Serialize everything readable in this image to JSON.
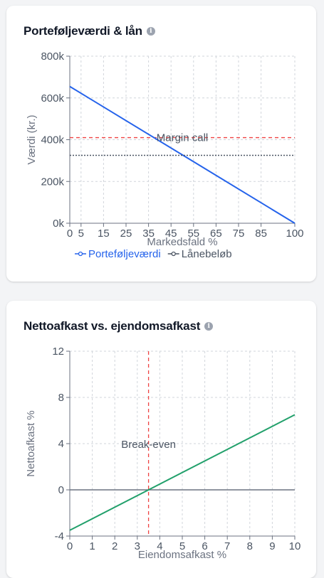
{
  "cards": [
    {
      "title": "Porteføljeværdi & lån",
      "info_icon": "info-icon"
    },
    {
      "title": "Nettoafkast vs. ejendomsafkast",
      "info_icon": "info-icon"
    }
  ],
  "chart_data": [
    {
      "type": "line",
      "xlabel": "Markedsfald %",
      "ylabel": "Værdi (kr.)",
      "xlim": [
        0,
        100
      ],
      "ylim": [
        0,
        800000
      ],
      "x_ticks": [
        "0",
        "5",
        "15",
        "25",
        "35",
        "45",
        "55",
        "65",
        "75",
        "85",
        "100"
      ],
      "y_ticks": [
        "0k",
        "200k",
        "400k",
        "600k",
        "800k"
      ],
      "grid": true,
      "legend": "bottom",
      "series": [
        {
          "name": "Porteføljeværdi",
          "color": "#2563eb",
          "style": "solid",
          "x": [
            0,
            100
          ],
          "y": [
            655000,
            0
          ]
        },
        {
          "name": "Lånebeløb",
          "color": "#4b5563",
          "style": "dotted",
          "x": [
            0,
            100
          ],
          "y": [
            325000,
            325000
          ]
        }
      ],
      "reference_lines": [
        {
          "label": "Margin call",
          "y": 410000,
          "color": "#ef4444",
          "style": "dashed"
        }
      ]
    },
    {
      "type": "line",
      "xlabel": "Eiendomsafkast %",
      "ylabel": "Nettoafkast %",
      "xlim": [
        0,
        10
      ],
      "ylim": [
        -4,
        12
      ],
      "x_ticks": [
        "0",
        "1",
        "2",
        "3",
        "4",
        "5",
        "6",
        "7",
        "8",
        "9",
        "10"
      ],
      "y_ticks": [
        "-4",
        "0",
        "4",
        "8",
        "12"
      ],
      "grid": true,
      "series": [
        {
          "color": "#22a06b",
          "x": [
            0,
            10
          ],
          "y": [
            -3.5,
            6.5
          ]
        }
      ],
      "reference_lines": [
        {
          "label": "Break-even",
          "x": 3.5,
          "color": "#ef4444",
          "style": "dashed"
        },
        {
          "y": 0,
          "color": "#6b7280",
          "style": "solid"
        }
      ]
    }
  ]
}
